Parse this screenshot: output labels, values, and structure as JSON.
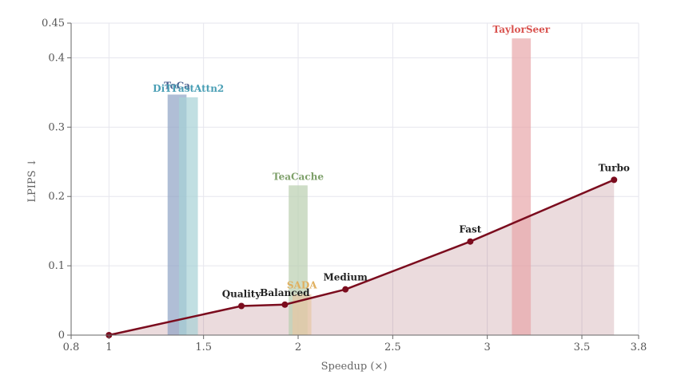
{
  "chart_data": {
    "type": "bar",
    "title": "",
    "xlabel": "Speedup (×)",
    "ylabel": "LPIPS ↓",
    "xlim": [
      0.8,
      3.8
    ],
    "ylim": [
      0,
      0.45
    ],
    "x_ticks": [
      "0.8",
      "1",
      "1.5",
      "2",
      "2.5",
      "3",
      "3.5",
      "3.8"
    ],
    "y_ticks": [
      "0",
      "0.1",
      "0.2",
      "0.3",
      "0.4",
      "0.45"
    ],
    "grid": true,
    "legend": "none",
    "bars": [
      {
        "name": "ToCa",
        "x": 1.36,
        "value": 0.347,
        "color": "#8fa2c4"
      },
      {
        "name": "DiTFastAttn2",
        "x": 1.42,
        "value": 0.343,
        "color": "#a7d1d6"
      },
      {
        "name": "TeaCache",
        "x": 2.0,
        "value": 0.216,
        "color": "#b9cfaf"
      },
      {
        "name": "SADA",
        "x": 2.02,
        "value": 0.059,
        "color": "#e7c8a5"
      },
      {
        "name": "TaylorSeer",
        "x": 3.18,
        "value": 0.428,
        "color": "#e8a7aa"
      }
    ],
    "bar_label_colors": {
      "ToCa": "#4a5f8f",
      "DiTFastAttn2": "#4a9fb5",
      "TeaCache": "#7ea06a",
      "SADA": "#e0b060",
      "TaylorSeer": "#d9534f"
    },
    "line_series": {
      "color": "#7b0c1e",
      "points": [
        {
          "label": "",
          "x": 1.0,
          "y": 0.0
        },
        {
          "label": "Quality",
          "x": 1.7,
          "y": 0.042
        },
        {
          "label": "Balanced",
          "x": 1.93,
          "y": 0.044
        },
        {
          "label": "Medium",
          "x": 2.25,
          "y": 0.066
        },
        {
          "label": "Fast",
          "x": 2.91,
          "y": 0.135
        },
        {
          "label": "Turbo",
          "x": 3.67,
          "y": 0.224
        }
      ]
    }
  }
}
